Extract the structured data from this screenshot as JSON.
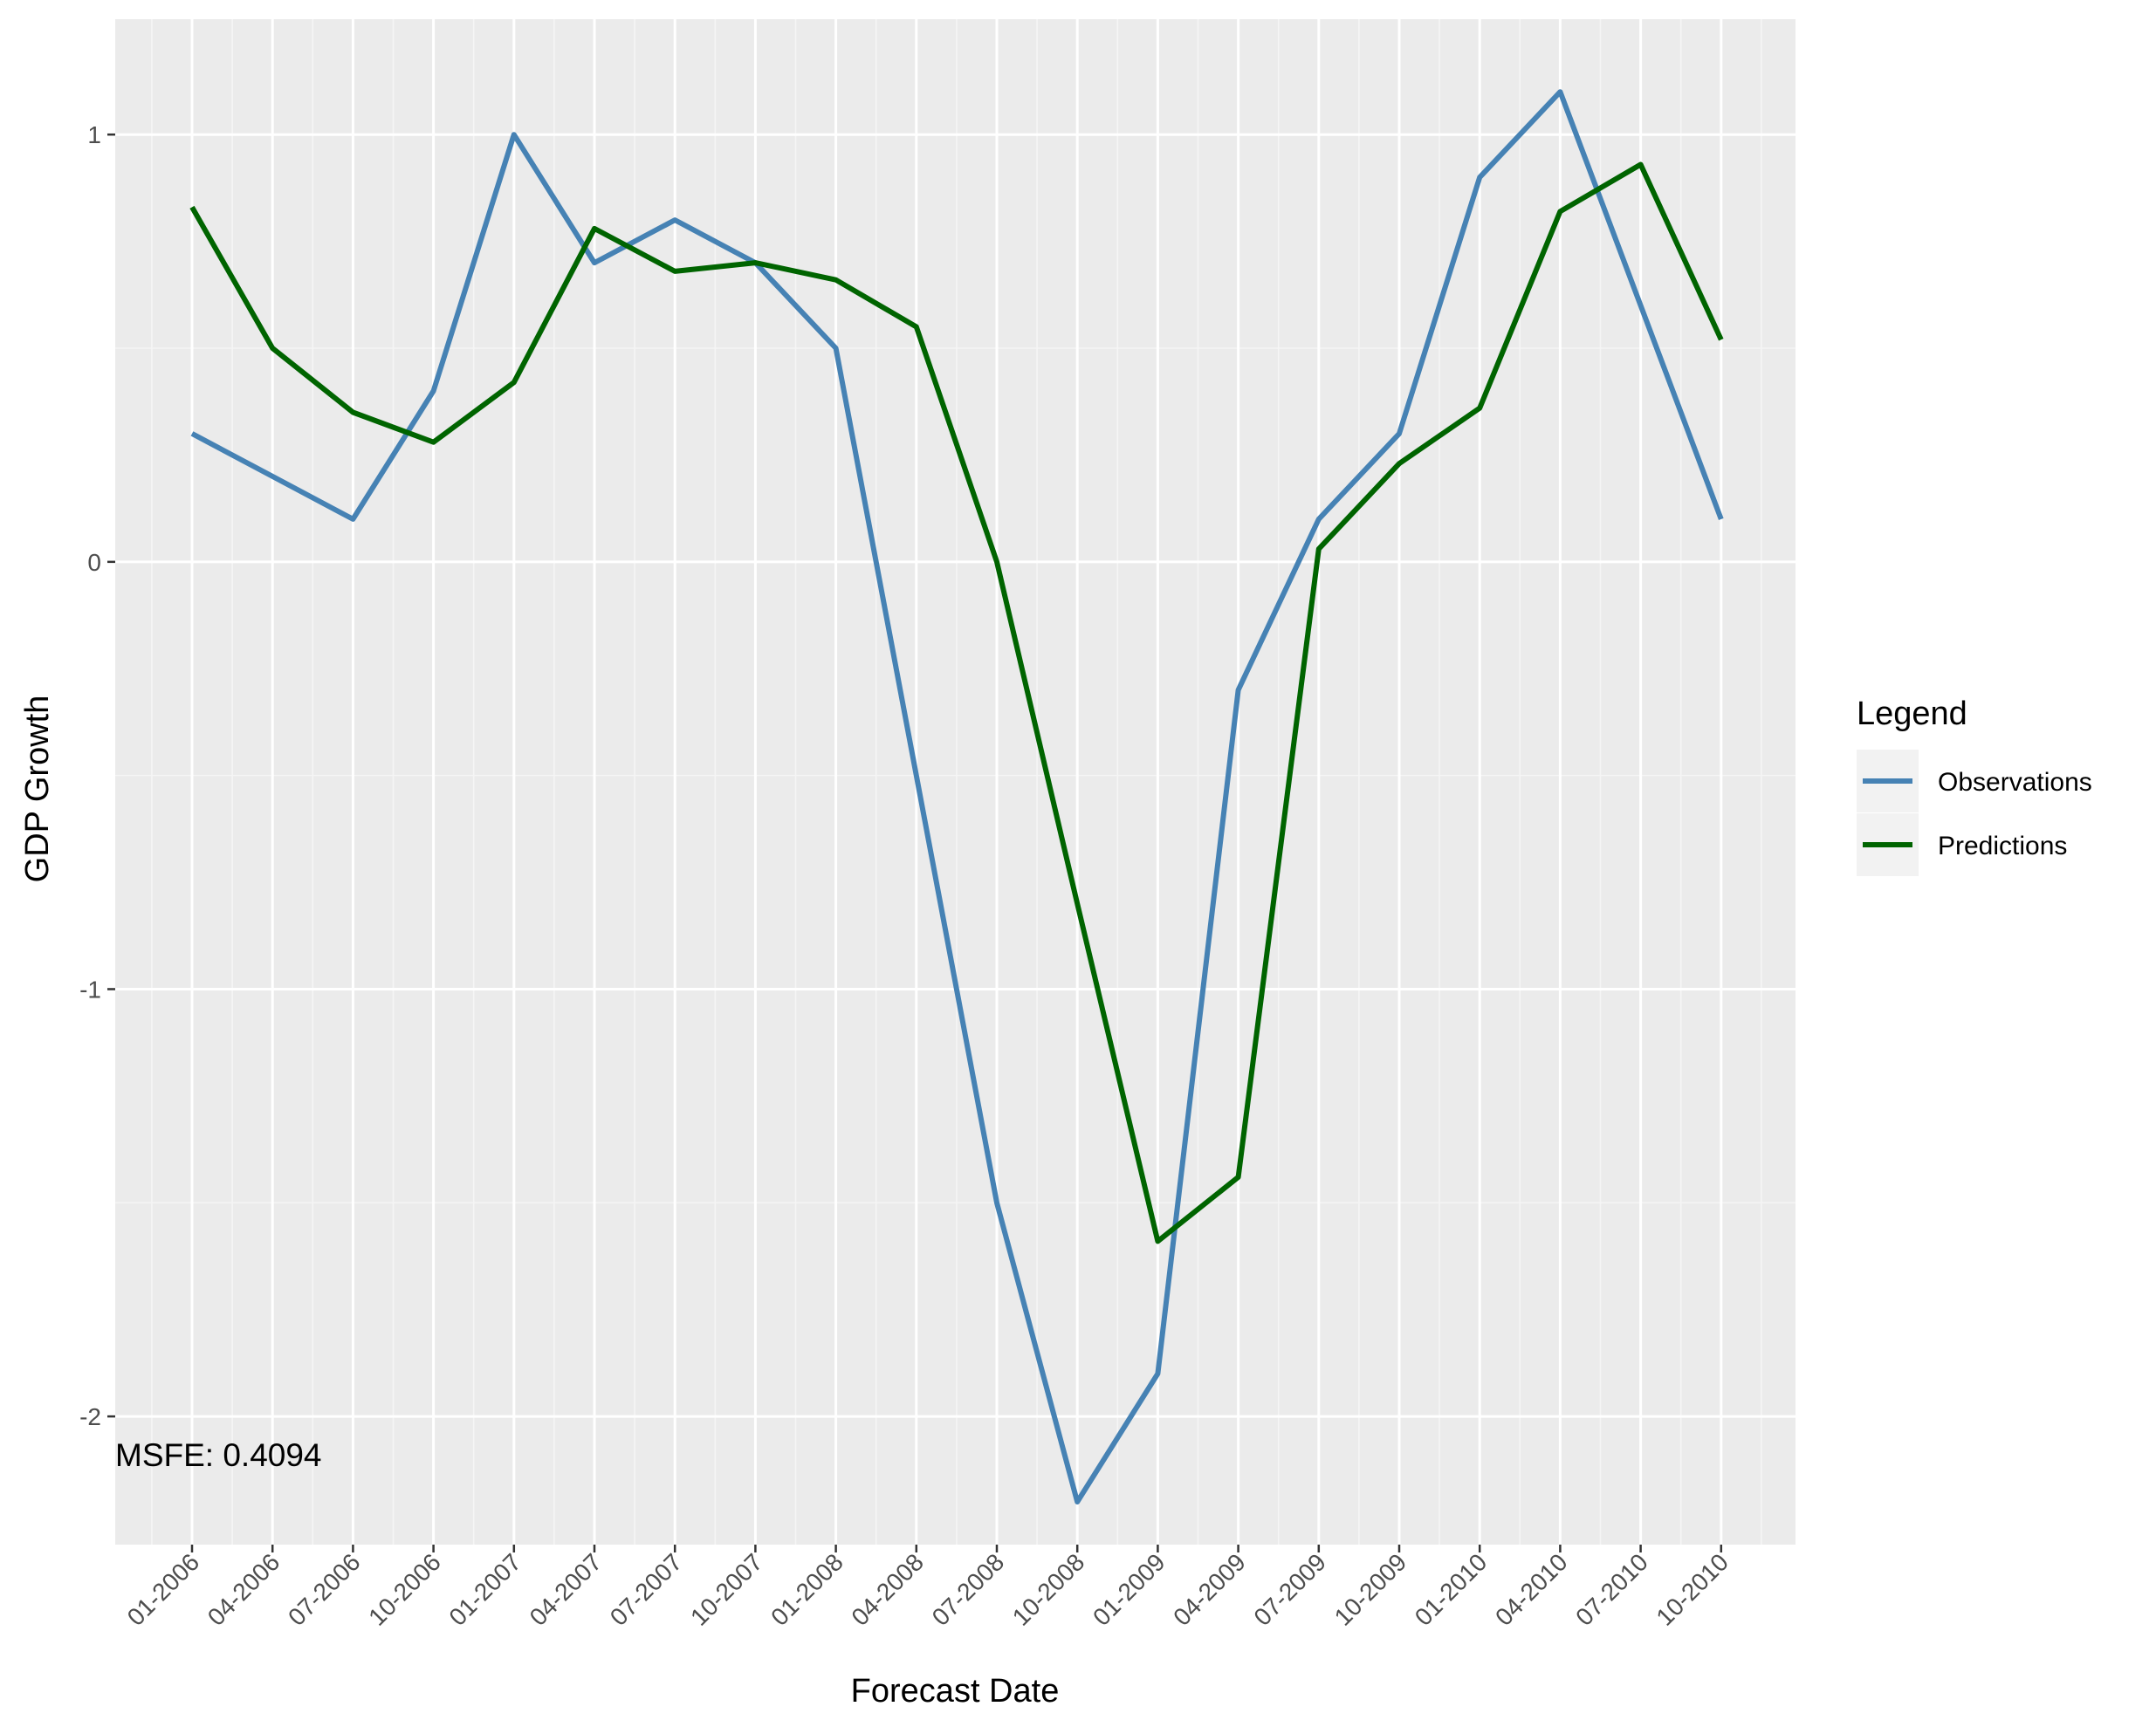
{
  "chart_data": {
    "type": "line",
    "title": "",
    "xlabel": "Forecast Date",
    "ylabel": "GDP Growth",
    "categories": [
      "01-2006",
      "04-2006",
      "07-2006",
      "10-2006",
      "01-2007",
      "04-2007",
      "07-2007",
      "10-2007",
      "01-2008",
      "04-2008",
      "07-2008",
      "10-2008",
      "01-2009",
      "04-2009",
      "07-2009",
      "10-2009",
      "01-2010",
      "04-2010",
      "07-2010",
      "10-2010"
    ],
    "yticks": [
      {
        "value": 1,
        "label": "1"
      },
      {
        "value": 0,
        "label": "0"
      },
      {
        "value": -1,
        "label": "-1"
      },
      {
        "value": -2,
        "label": "-2"
      }
    ],
    "ylim": [
      -2.3,
      1.27
    ],
    "grid": true,
    "legend": {
      "title": "Legend",
      "position": "right"
    },
    "series": [
      {
        "name": "Observations",
        "color": "#4682b4",
        "values": [
          0.3,
          0.2,
          0.1,
          0.4,
          1.0,
          0.7,
          0.8,
          0.7,
          0.5,
          -0.5,
          -1.5,
          -2.2,
          -1.9,
          -0.3,
          0.1,
          0.3,
          0.9,
          1.1,
          0.6,
          0.1
        ]
      },
      {
        "name": "Predictions",
        "color": "#006400",
        "values": [
          0.83,
          0.5,
          0.35,
          0.28,
          0.42,
          0.78,
          0.68,
          0.7,
          0.66,
          0.55,
          0.0,
          -0.8,
          -1.59,
          -1.44,
          0.03,
          0.23,
          0.36,
          0.82,
          0.93,
          0.52
        ]
      }
    ],
    "annotations": [
      {
        "text": "MSFE: 0.4094"
      }
    ]
  }
}
